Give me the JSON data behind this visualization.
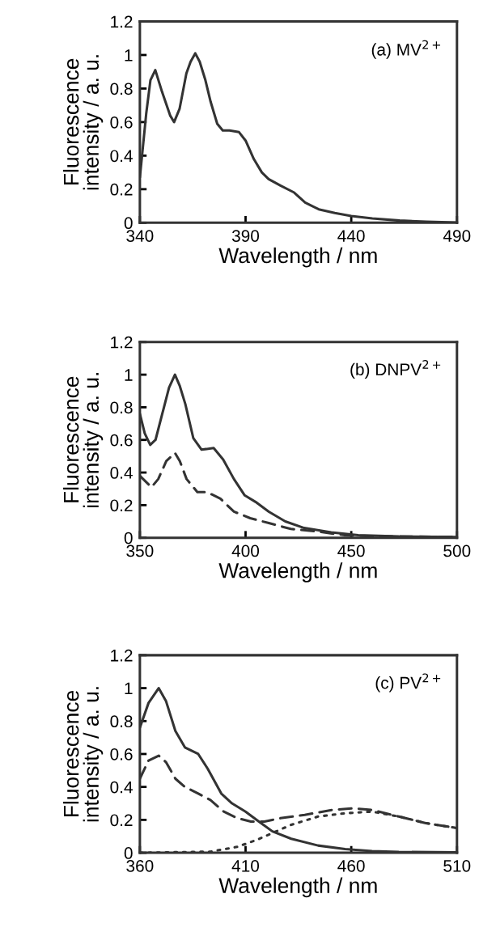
{
  "chart_data": [
    {
      "type": "line",
      "xlabel": "Wavelength / nm",
      "ylabel": "Fluorescence\nintensity / a. u.",
      "annotations": [
        "(a) MV$^{2+}$"
      ],
      "xlim": [
        340,
        490
      ],
      "xticks": [
        340,
        390,
        440,
        490
      ],
      "ylim": [
        0,
        1.2
      ],
      "yticks": [
        0,
        0.2,
        0.4,
        0.6,
        0.8,
        1,
        1.2
      ],
      "series": [
        {
          "color": "#333333",
          "line_style": "solid",
          "x": [
            340,
            343,
            345,
            347.3,
            350.5,
            354.3,
            356.2,
            358.8,
            362,
            364,
            366.2,
            368.3,
            371,
            373.5,
            376.6,
            379.2,
            382.4,
            386.9,
            390,
            393.9,
            397.7,
            400.9,
            406.7,
            413,
            418.2,
            424.6,
            432.2,
            440,
            450,
            462.9,
            475.6,
            489.7
          ],
          "values": [
            0.27,
            0.65,
            0.85,
            0.91,
            0.78,
            0.64,
            0.6,
            0.68,
            0.89,
            0.96,
            1.01,
            0.96,
            0.85,
            0.72,
            0.59,
            0.55,
            0.55,
            0.54,
            0.49,
            0.38,
            0.3,
            0.26,
            0.22,
            0.18,
            0.12,
            0.08,
            0.058,
            0.04,
            0.026,
            0.013,
            0.006,
            0.002
          ]
        }
      ]
    },
    {
      "type": "line",
      "xlabel": "Wavelength / nm",
      "ylabel": "Fluorescence\nintensity / a. u.",
      "annotations": [
        "(b) DNPV$^{2+}$"
      ],
      "xlim": [
        350,
        500
      ],
      "xticks": [
        350,
        400,
        450,
        500
      ],
      "ylim": [
        0,
        1.2
      ],
      "yticks": [
        0,
        0.2,
        0.4,
        0.6,
        0.8,
        1,
        1.2
      ],
      "series": [
        {
          "color": "#333333",
          "line_style": "solid",
          "x": [
            350,
            352.3,
            354.9,
            357.4,
            360.6,
            363.8,
            366.6,
            368.9,
            371.5,
            375.3,
            379.2,
            384.9,
            389.4,
            394.5,
            399.6,
            404.7,
            411,
            418.8,
            427.7,
            440.5,
            453.3,
            472.5,
            500
          ],
          "values": [
            0.76,
            0.64,
            0.57,
            0.6,
            0.76,
            0.92,
            1.0,
            0.93,
            0.82,
            0.61,
            0.54,
            0.55,
            0.48,
            0.36,
            0.26,
            0.22,
            0.16,
            0.1,
            0.06,
            0.033,
            0.016,
            0.008,
            0.005
          ]
        },
        {
          "color": "#333333",
          "line_style": "dashed",
          "x": [
            350,
            355.5,
            358.7,
            362.5,
            366.6,
            368.9,
            372.1,
            377.2,
            381.7,
            388.1,
            394.5,
            402.2,
            411,
            421.4,
            434.1,
            446.9,
            459.7,
            480,
            500
          ],
          "values": [
            0.38,
            0.31,
            0.36,
            0.47,
            0.52,
            0.47,
            0.36,
            0.28,
            0.28,
            0.24,
            0.16,
            0.12,
            0.09,
            0.054,
            0.038,
            0.016,
            0.01,
            0.007,
            0.005
          ]
        }
      ]
    },
    {
      "type": "line",
      "xlabel": "Wavelength / nm",
      "ylabel": "Fluorescence\nintensity / a. u.",
      "annotations": [
        "(c) PV$^{2+}$"
      ],
      "xlim": [
        360,
        510
      ],
      "xticks": [
        360,
        410,
        460,
        510
      ],
      "ylim": [
        0,
        1.2
      ],
      "yticks": [
        0,
        0.2,
        0.4,
        0.6,
        0.8,
        1,
        1.2
      ],
      "series": [
        {
          "color": "#333333",
          "line_style": "solid",
          "x": [
            360,
            364.1,
            368.9,
            372.4,
            376.8,
            381.3,
            387.6,
            392.1,
            398.5,
            403.6,
            410,
            416.3,
            422.7,
            431.6,
            444.3,
            457.1,
            469.8,
            482.5,
            510
          ],
          "values": [
            0.76,
            0.91,
            1.0,
            0.92,
            0.74,
            0.64,
            0.6,
            0.51,
            0.36,
            0.3,
            0.25,
            0.19,
            0.13,
            0.085,
            0.044,
            0.023,
            0.01,
            0.005,
            0.003
          ]
        },
        {
          "color": "#333333",
          "line_style": "dashed",
          "x": [
            360,
            364.1,
            368.9,
            372.4,
            376.8,
            381.3,
            387.6,
            393.4,
            399.7,
            406.1,
            412.5,
            418.9,
            426.5,
            438,
            450.7,
            460.9,
            469.8,
            482.5,
            495.3,
            510
          ],
          "values": [
            0.45,
            0.56,
            0.59,
            0.55,
            0.45,
            0.4,
            0.36,
            0.32,
            0.25,
            0.21,
            0.19,
            0.19,
            0.21,
            0.23,
            0.26,
            0.27,
            0.26,
            0.22,
            0.18,
            0.15
          ]
        },
        {
          "color": "#333333",
          "line_style": "dotted",
          "x": [
            360,
            393.4,
            406.1,
            415,
            422.7,
            431.6,
            444.3,
            457.1,
            469.8,
            482.5,
            495.3,
            510
          ],
          "values": [
            0,
            0.007,
            0.036,
            0.077,
            0.12,
            0.17,
            0.22,
            0.24,
            0.25,
            0.22,
            0.18,
            0.15
          ]
        }
      ]
    }
  ]
}
